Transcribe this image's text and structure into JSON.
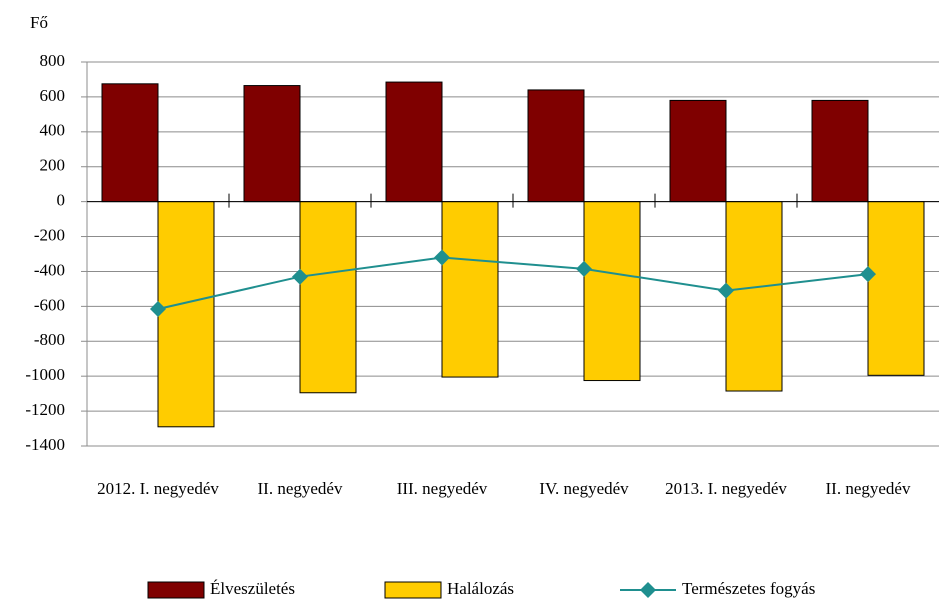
{
  "chart_data": {
    "type": "bar",
    "y_label": "Fő",
    "categories": [
      "2012. I. negyedév",
      "II. negyedév",
      "III. negyedév",
      "IV. negyedév",
      "2013. I. negyedév",
      "II. negyedév"
    ],
    "series": [
      {
        "name": "Élveszületés",
        "type": "bar",
        "color": "#7f0000",
        "values": [
          675,
          665,
          685,
          640,
          580,
          580
        ]
      },
      {
        "name": "Halálozás",
        "type": "bar",
        "color": "#ffcc00",
        "values": [
          -1290,
          -1095,
          -1005,
          -1025,
          -1085,
          -995
        ]
      },
      {
        "name": "Természetes fogyás",
        "type": "line",
        "color": "#1f8f8f",
        "values": [
          -615,
          -430,
          -320,
          -385,
          -510,
          -415
        ]
      }
    ],
    "ylim": [
      -1400,
      800
    ],
    "yticks": [
      -1400,
      -1200,
      -1000,
      -800,
      -600,
      -400,
      -200,
      0,
      200,
      400,
      600,
      800
    ],
    "grid": true,
    "legend": "bottom"
  }
}
